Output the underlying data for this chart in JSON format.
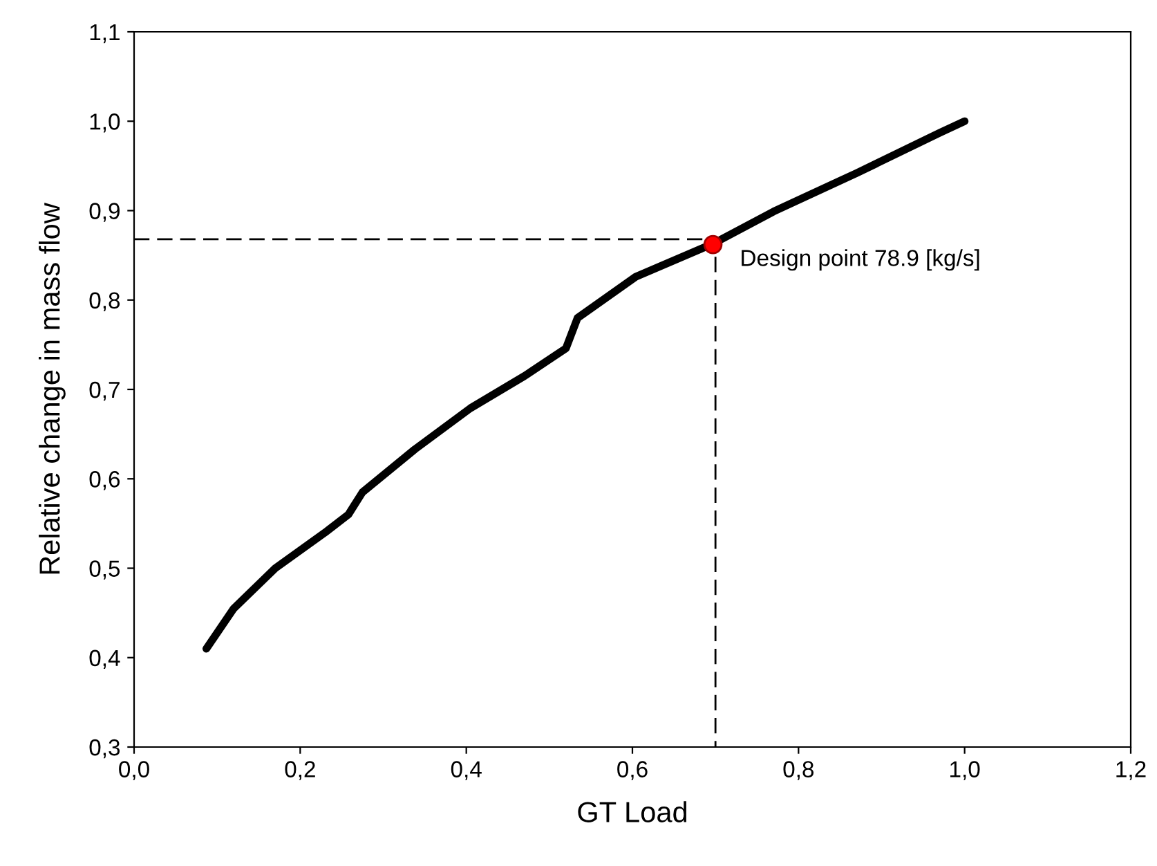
{
  "chart_data": {
    "type": "line",
    "xlabel": "GT Load",
    "ylabel": "Relative change in mass flow",
    "xlim": [
      0,
      1.2
    ],
    "ylim": [
      0.3,
      1.1
    ],
    "xticks": [
      {
        "value": 0,
        "label": "0,0"
      },
      {
        "value": 0.2,
        "label": "0,2"
      },
      {
        "value": 0.4,
        "label": "0,4"
      },
      {
        "value": 0.6,
        "label": "0,6"
      },
      {
        "value": 0.8,
        "label": "0,8"
      },
      {
        "value": 1.0,
        "label": "1,0"
      },
      {
        "value": 1.2,
        "label": "1,2"
      }
    ],
    "yticks": [
      {
        "value": 0.3,
        "label": "0,3"
      },
      {
        "value": 0.4,
        "label": "0,4"
      },
      {
        "value": 0.5,
        "label": "0,5"
      },
      {
        "value": 0.6,
        "label": "0,6"
      },
      {
        "value": 0.7,
        "label": "0,7"
      },
      {
        "value": 0.8,
        "label": "0,8"
      },
      {
        "value": 0.9,
        "label": "0,9"
      },
      {
        "value": 1.0,
        "label": "1,0"
      },
      {
        "value": 1.1,
        "label": "1,1"
      }
    ],
    "grid": false,
    "legend": false,
    "series": [
      {
        "type": "line",
        "color": "#000000",
        "line_style": "dashed",
        "x": [
          0,
          0.7,
          0.7
        ],
        "values": [
          0.868,
          0.868,
          0.3
        ]
      },
      {
        "color": "#000000",
        "line_style": "solid",
        "x": [
          0.087,
          0.12,
          0.17,
          0.23,
          0.258,
          0.275,
          0.338,
          0.405,
          0.47,
          0.52,
          0.534,
          0.604,
          0.697,
          0.77,
          0.87,
          0.97,
          1.0
        ],
        "values": [
          0.41,
          0.455,
          0.5,
          0.54,
          0.56,
          0.585,
          0.633,
          0.679,
          0.715,
          0.746,
          0.78,
          0.826,
          0.863,
          0.899,
          0.942,
          0.987,
          1.0
        ]
      },
      {
        "type": "scatter",
        "color": "#ff0000",
        "marker": "circle",
        "x": [
          0.697
        ],
        "values": [
          0.862
        ]
      }
    ],
    "annotations": [
      {
        "text": "Design point 78.9 [kg/s]",
        "x": 0.697,
        "y": 0.862
      }
    ]
  }
}
